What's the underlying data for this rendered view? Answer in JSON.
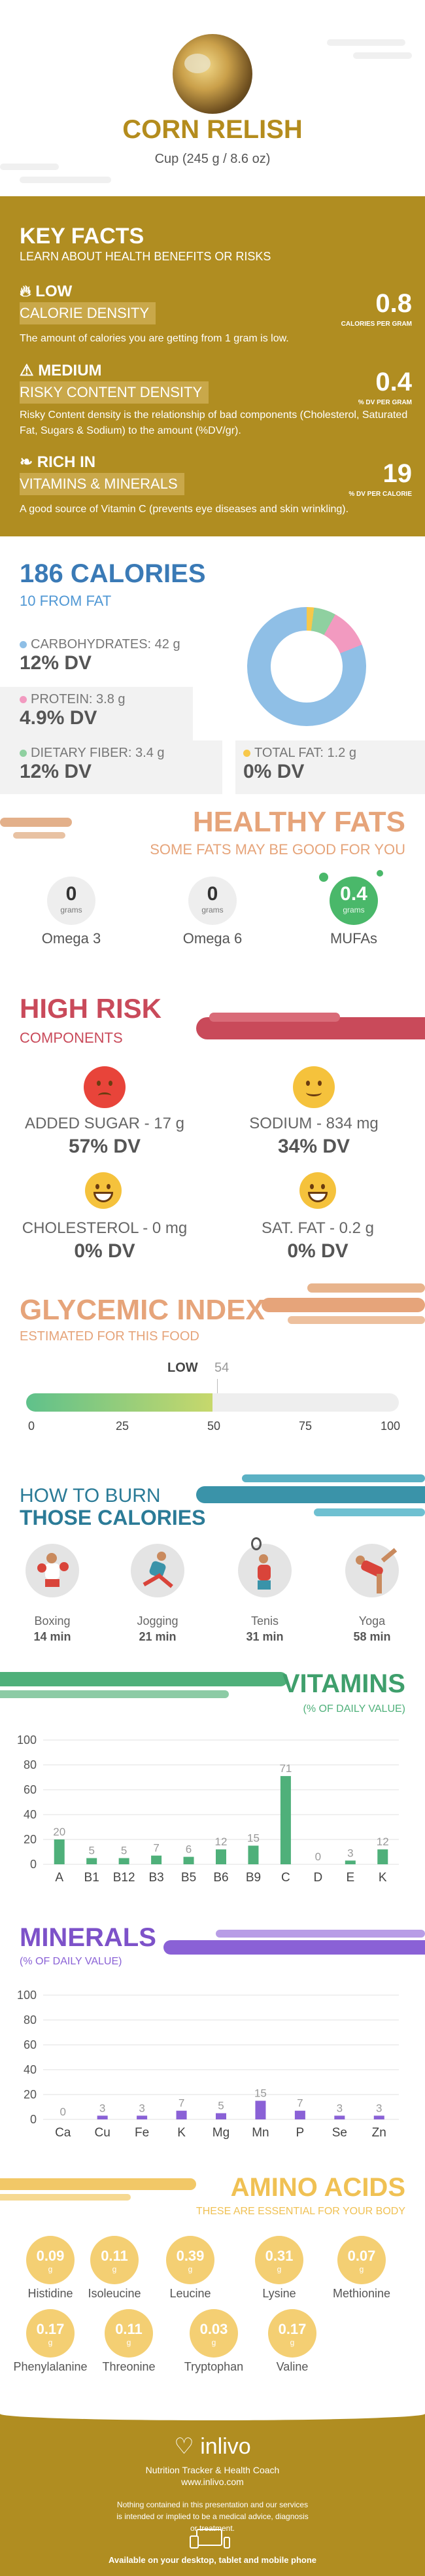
{
  "header": {
    "title": "CORN RELISH",
    "serving": "Cup (245 g / 8.6 oz)"
  },
  "key_facts": {
    "title": "KEY FACTS",
    "subtitle": "LEARN ABOUT HEALTH BENEFITS OR RISKS",
    "facts": [
      {
        "level": "LOW",
        "label": "CALORIE DENSITY",
        "desc": "The amount of calories you are getting from 1 gram is low.",
        "value": "0.8",
        "unit": "CALORIES PER GRAM",
        "icon": "fire-icon"
      },
      {
        "level": "MEDIUM",
        "label": "RISKY CONTENT DENSITY",
        "desc": "Risky Content density is the relationship of bad components (Cholesterol, Saturated Fat, Sugars & Sodium) to the amount (%DV/gr).",
        "value": "0.4",
        "unit": "% DV PER GRAM",
        "icon": "warning-icon"
      },
      {
        "level": "RICH IN",
        "label": "VITAMINS & MINERALS",
        "desc": "A good source of Vitamin C (prevents eye diseases and skin wrinkling).",
        "value": "19",
        "unit": "% DV PER CALORIE",
        "icon": "leaf-icon"
      }
    ]
  },
  "calories": {
    "title": "186 CALORIES",
    "subtitle": "10 FROM FAT",
    "nutrients": [
      {
        "label": "CARBOHYDRATES: 42 g",
        "dv": "12% DV",
        "color": "#8fbfe6"
      },
      {
        "label": "PROTEIN: 3.8 g",
        "dv": "4.9% DV",
        "color": "#f29ac0"
      },
      {
        "label": "DIETARY FIBER: 3.4 g",
        "dv": "12% DV",
        "color": "#8fd0a0"
      },
      {
        "label": "TOTAL FAT: 1.2 g",
        "dv": "0% DV",
        "color": "#f7c84a"
      }
    ]
  },
  "healthy_fats": {
    "title": "HEALTHY FATS",
    "subtitle": "SOME FATS MAY BE GOOD FOR YOU",
    "items": [
      {
        "name": "Omega 3",
        "value": "0",
        "unit": "grams"
      },
      {
        "name": "Omega 6",
        "value": "0",
        "unit": "grams"
      },
      {
        "name": "MUFAs",
        "value": "0.4",
        "unit": "grams"
      }
    ]
  },
  "high_risk": {
    "title": "HIGH RISK",
    "subtitle": "COMPONENTS",
    "items": [
      {
        "label": "ADDED SUGAR - 17 g",
        "dv": "57% DV",
        "face": "sad"
      },
      {
        "label": "SODIUM - 834 mg",
        "dv": "34% DV",
        "face": "happy"
      },
      {
        "label": "CHOLESTEROL - 0 mg",
        "dv": "0% DV",
        "face": "grin"
      },
      {
        "label": "SAT. FAT - 0.2 g",
        "dv": "0% DV",
        "face": "grin"
      }
    ]
  },
  "glycemic": {
    "title": "GLYCEMIC INDEX",
    "subtitle": "ESTIMATED FOR THIS FOOD",
    "level": "LOW",
    "value": "54",
    "ticks": [
      "0",
      "25",
      "50",
      "75",
      "100"
    ]
  },
  "burn": {
    "title_line1": "HOW TO BURN",
    "title_line2": "THOSE CALORIES",
    "activities": [
      {
        "name": "Boxing",
        "minutes": "14 min",
        "icon": "boxing-icon"
      },
      {
        "name": "Jogging",
        "minutes": "21 min",
        "icon": "jogging-icon"
      },
      {
        "name": "Tenis",
        "minutes": "31 min",
        "icon": "tennis-icon"
      },
      {
        "name": "Yoga",
        "minutes": "58 min",
        "icon": "yoga-icon"
      }
    ]
  },
  "chart_data": [
    {
      "type": "bar",
      "title": "VITAMINS",
      "subtitle": "(% OF DAILY VALUE)",
      "categories": [
        "A",
        "B1",
        "B12",
        "B3",
        "B5",
        "B6",
        "B9",
        "C",
        "D",
        "E",
        "K"
      ],
      "values": [
        20,
        5,
        5,
        7,
        6,
        12,
        15,
        71,
        0,
        3,
        12
      ],
      "ylim": [
        0,
        100
      ],
      "yticks": [
        "0",
        "20",
        "40",
        "60",
        "80",
        "100"
      ],
      "color": "#4fb07a"
    },
    {
      "type": "bar",
      "title": "MINERALS",
      "subtitle": "(% OF DAILY VALUE)",
      "categories": [
        "Ca",
        "Cu",
        "Fe",
        "K",
        "Mg",
        "Mn",
        "P",
        "Se",
        "Zn"
      ],
      "values": [
        0,
        3,
        3,
        7,
        5,
        15,
        7,
        3,
        3
      ],
      "ylim": [
        0,
        100
      ],
      "yticks": [
        "0",
        "20",
        "40",
        "60",
        "80",
        "100"
      ],
      "color": "#8a61d6"
    }
  ],
  "amino": {
    "title": "AMINO ACIDS",
    "subtitle": "THESE ARE ESSENTIAL FOR YOUR BODY",
    "unit": "g",
    "items": [
      {
        "name": "Histidine",
        "value": "0.09"
      },
      {
        "name": "Isoleucine",
        "value": "0.11"
      },
      {
        "name": "Leucine",
        "value": "0.39"
      },
      {
        "name": "Lysine",
        "value": "0.31"
      },
      {
        "name": "Methionine",
        "value": "0.07"
      },
      {
        "name": "Phenylalanine",
        "value": "0.17"
      },
      {
        "name": "Threonine",
        "value": "0.11"
      },
      {
        "name": "Tryptophan",
        "value": "0.03"
      },
      {
        "name": "Valine",
        "value": "0.17"
      }
    ]
  },
  "footer": {
    "brand": "inlivo",
    "tagline": "Nutrition Tracker & Health Coach",
    "url": "www.inlivo.com",
    "disclaimer": "Nothing contained in this presentation and our services is intended or implied to be a medical advice, diagnosis or treatment.",
    "available": "Available on your desktop, tablet and mobile phone"
  }
}
